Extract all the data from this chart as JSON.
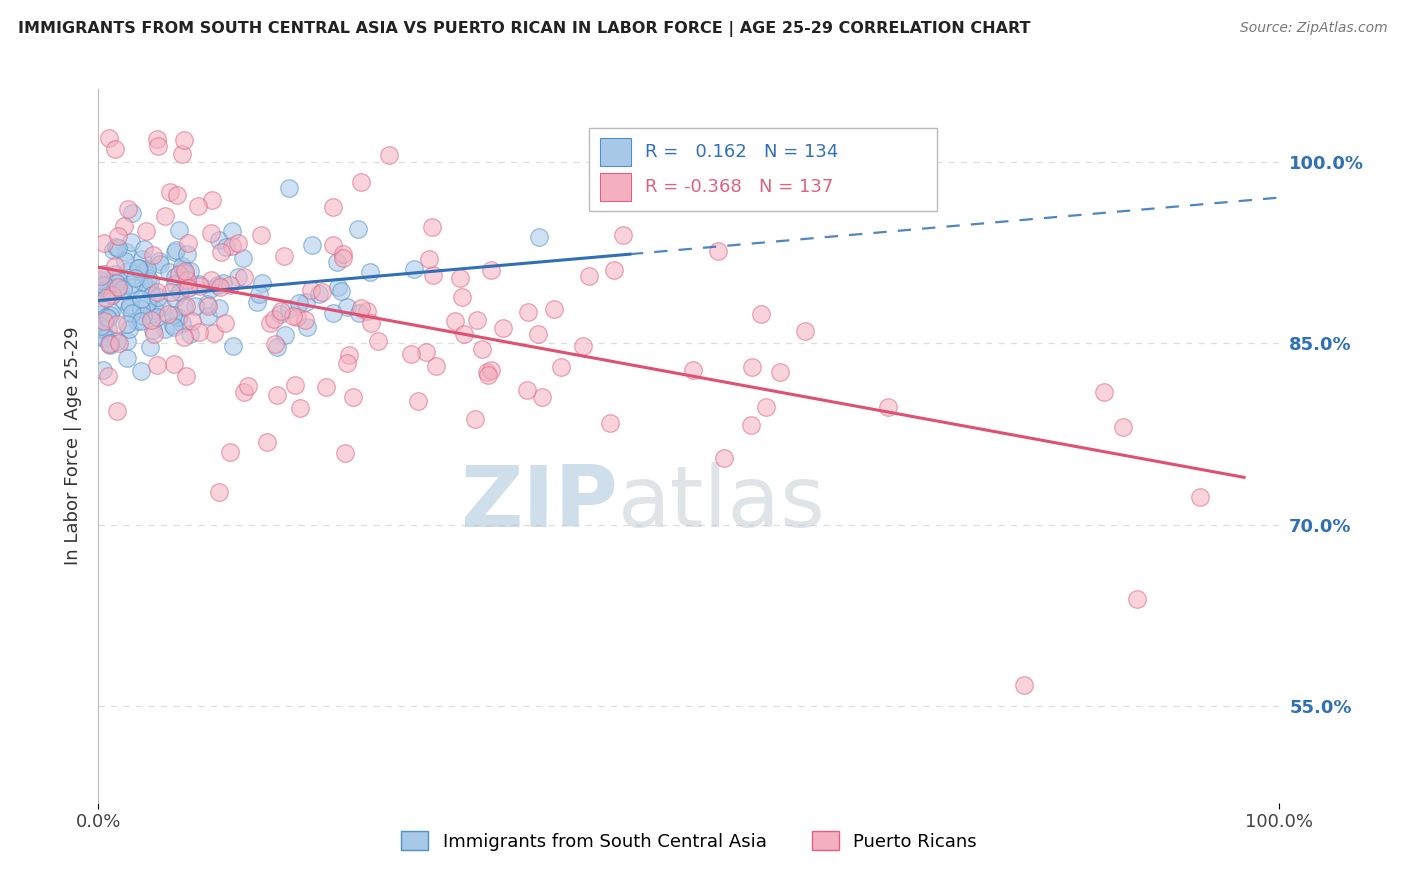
{
  "title": "IMMIGRANTS FROM SOUTH CENTRAL ASIA VS PUERTO RICAN IN LABOR FORCE | AGE 25-29 CORRELATION CHART",
  "source": "Source: ZipAtlas.com",
  "ylabel": "In Labor Force | Age 25-29",
  "xlim": [
    0.0,
    1.0
  ],
  "ylim": [
    0.47,
    1.06
  ],
  "yticks": [
    0.55,
    0.7,
    0.85,
    1.0
  ],
  "ytick_labels": [
    "55.0%",
    "70.0%",
    "85.0%",
    "100.0%"
  ],
  "xtick_labels": [
    "0.0%",
    "100.0%"
  ],
  "blue_R": 0.162,
  "blue_N": 134,
  "pink_R": -0.368,
  "pink_N": 137,
  "blue_color": "#a8c8e8",
  "pink_color": "#f4b0c0",
  "blue_edge_color": "#5090c8",
  "pink_edge_color": "#e06080",
  "blue_line_color": "#3070b8",
  "pink_line_color": "#e05070",
  "legend1": "Immigrants from South Central Asia",
  "legend2": "Puerto Ricans",
  "watermark_zip": "ZIP",
  "watermark_atlas": "atlas",
  "background_color": "#ffffff",
  "grid_color": "#dddddd",
  "blue_seed": 12,
  "pink_seed": 55
}
